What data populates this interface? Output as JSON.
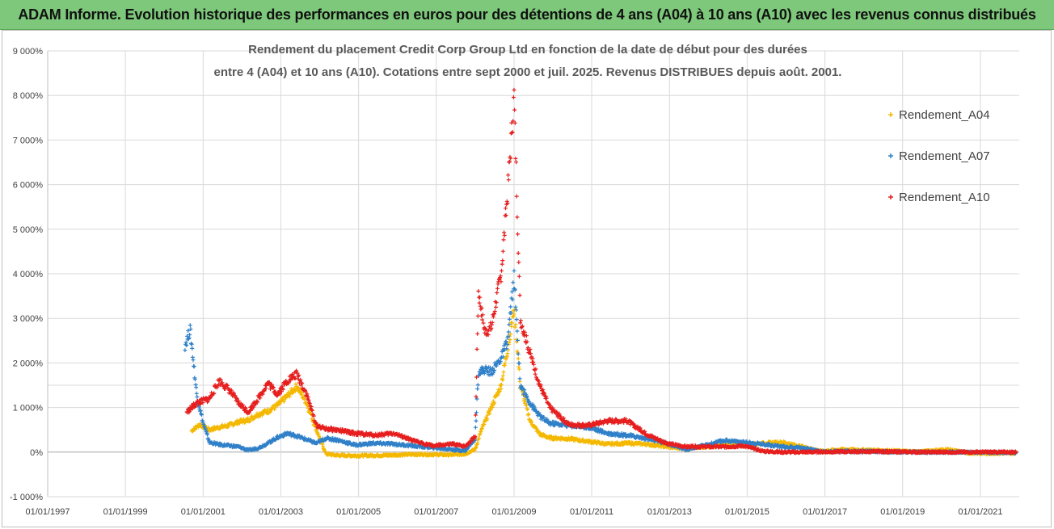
{
  "header": {
    "title": "ADAM Informe. Evolution historique des performances en euros pour des détentions de 4 ans (A04) à 10 ans (A10) avec les revenus connus distribués"
  },
  "chart_data": {
    "type": "scatter",
    "title_line1": "Rendement du placement Credit Corp Group Ltd en fonction de la date de début pour des durées",
    "title_line2": "entre 4 (A04) et 10 ans (A10). Cotations entre sept 2000 et juil. 2025. Revenus DISTRIBUES depuis août. 2001.",
    "xlabel": "",
    "ylabel": "",
    "xlim": [
      "1997-01-01",
      "2022-01-01"
    ],
    "ylim": [
      -1000,
      9000
    ],
    "y_ticks": [
      "9 000%",
      "8 000%",
      "7 000%",
      "6 000%",
      "5 000%",
      "4 000%",
      "3 000%",
      "2 000%",
      "1 000%",
      "0%",
      "-1 000%"
    ],
    "x_ticks": [
      "01/01/1997",
      "01/01/1999",
      "01/01/2001",
      "01/01/2003",
      "01/01/2005",
      "01/01/2007",
      "01/01/2009",
      "01/01/2011",
      "01/01/2013",
      "01/01/2015",
      "01/01/2017",
      "01/01/2019",
      "01/01/2021"
    ],
    "legend_position": "right",
    "grid": true,
    "marker": "+",
    "series": [
      {
        "name": "Rendement_A04",
        "color": "#f5b800",
        "points": [
          [
            "2000-09-15",
            480
          ],
          [
            "2000-12-01",
            620
          ],
          [
            "2001-03-01",
            500
          ],
          [
            "2001-06-01",
            560
          ],
          [
            "2001-09-01",
            600
          ],
          [
            "2001-12-01",
            680
          ],
          [
            "2002-03-01",
            720
          ],
          [
            "2002-06-01",
            850
          ],
          [
            "2002-09-01",
            920
          ],
          [
            "2002-12-01",
            1050
          ],
          [
            "2003-03-01",
            1250
          ],
          [
            "2003-06-01",
            1480
          ],
          [
            "2003-09-01",
            1100
          ],
          [
            "2003-12-01",
            500
          ],
          [
            "2004-03-01",
            -40
          ],
          [
            "2004-06-01",
            -70
          ],
          [
            "2004-12-01",
            -80
          ],
          [
            "2005-06-01",
            -75
          ],
          [
            "2005-12-01",
            -65
          ],
          [
            "2006-06-01",
            -50
          ],
          [
            "2006-12-01",
            -55
          ],
          [
            "2007-06-01",
            -60
          ],
          [
            "2007-10-01",
            -40
          ],
          [
            "2008-01-01",
            60
          ],
          [
            "2008-03-01",
            500
          ],
          [
            "2008-06-01",
            1000
          ],
          [
            "2008-09-01",
            1500
          ],
          [
            "2008-11-01",
            2300
          ],
          [
            "2009-01-01",
            3200
          ],
          [
            "2009-03-01",
            1500
          ],
          [
            "2009-06-01",
            700
          ],
          [
            "2009-09-01",
            400
          ],
          [
            "2009-12-01",
            320
          ],
          [
            "2010-06-01",
            300
          ],
          [
            "2010-12-01",
            240
          ],
          [
            "2011-06-01",
            180
          ],
          [
            "2011-12-01",
            200
          ],
          [
            "2012-06-01",
            180
          ],
          [
            "2012-12-01",
            120
          ],
          [
            "2013-06-01",
            80
          ],
          [
            "2013-12-01",
            120
          ],
          [
            "2014-06-01",
            150
          ],
          [
            "2014-12-01",
            160
          ],
          [
            "2015-06-01",
            200
          ],
          [
            "2015-12-01",
            220
          ],
          [
            "2016-06-01",
            120
          ],
          [
            "2016-12-01",
            20
          ],
          [
            "2017-06-01",
            60
          ],
          [
            "2018-06-01",
            40
          ],
          [
            "2019-06-01",
            10
          ],
          [
            "2020-03-01",
            60
          ],
          [
            "2020-09-01",
            -20
          ],
          [
            "2021-03-01",
            -30
          ],
          [
            "2021-12-01",
            -20
          ]
        ]
      },
      {
        "name": "Rendement_A07",
        "color": "#2f80c8",
        "points": [
          [
            "2000-07-15",
            2400
          ],
          [
            "2000-09-01",
            2750
          ],
          [
            "2000-11-01",
            1300
          ],
          [
            "2001-01-01",
            650
          ],
          [
            "2001-03-01",
            220
          ],
          [
            "2001-06-01",
            170
          ],
          [
            "2001-12-01",
            120
          ],
          [
            "2002-03-01",
            40
          ],
          [
            "2002-06-01",
            90
          ],
          [
            "2002-09-01",
            200
          ],
          [
            "2002-12-01",
            330
          ],
          [
            "2003-03-01",
            420
          ],
          [
            "2003-06-01",
            360
          ],
          [
            "2003-09-01",
            280
          ],
          [
            "2003-12-01",
            200
          ],
          [
            "2004-03-01",
            310
          ],
          [
            "2004-06-01",
            280
          ],
          [
            "2004-12-01",
            160
          ],
          [
            "2005-06-01",
            200
          ],
          [
            "2005-12-01",
            180
          ],
          [
            "2006-06-01",
            140
          ],
          [
            "2006-12-01",
            100
          ],
          [
            "2007-06-01",
            60
          ],
          [
            "2007-10-01",
            30
          ],
          [
            "2008-01-01",
            300
          ],
          [
            "2008-02-01",
            1800
          ],
          [
            "2008-04-01",
            1850
          ],
          [
            "2008-06-01",
            1800
          ],
          [
            "2008-09-01",
            2100
          ],
          [
            "2008-11-01",
            2500
          ],
          [
            "2009-01-01",
            3900
          ],
          [
            "2009-03-01",
            1500
          ],
          [
            "2009-06-01",
            1100
          ],
          [
            "2009-09-01",
            800
          ],
          [
            "2009-12-01",
            650
          ],
          [
            "2010-06-01",
            600
          ],
          [
            "2010-12-01",
            560
          ],
          [
            "2011-06-01",
            420
          ],
          [
            "2011-12-01",
            380
          ],
          [
            "2012-06-01",
            300
          ],
          [
            "2012-12-01",
            200
          ],
          [
            "2013-06-01",
            60
          ],
          [
            "2013-12-01",
            150
          ],
          [
            "2014-06-01",
            260
          ],
          [
            "2014-12-01",
            220
          ],
          [
            "2015-06-01",
            180
          ],
          [
            "2015-12-01",
            120
          ],
          [
            "2016-06-01",
            100
          ],
          [
            "2016-12-01",
            10
          ],
          [
            "2017-06-01",
            20
          ],
          [
            "2018-06-01",
            10
          ],
          [
            "2019-06-01",
            0
          ],
          [
            "2020-06-01",
            0
          ],
          [
            "2021-06-01",
            -10
          ],
          [
            "2021-12-01",
            -10
          ]
        ]
      },
      {
        "name": "Rendement_A10",
        "color": "#e61e1e",
        "points": [
          [
            "2000-08-01",
            900
          ],
          [
            "2000-11-01",
            1100
          ],
          [
            "2001-03-01",
            1200
          ],
          [
            "2001-06-01",
            1600
          ],
          [
            "2001-09-01",
            1400
          ],
          [
            "2001-12-01",
            1100
          ],
          [
            "2002-03-01",
            900
          ],
          [
            "2002-06-01",
            1200
          ],
          [
            "2002-09-01",
            1550
          ],
          [
            "2002-12-01",
            1300
          ],
          [
            "2003-03-01",
            1600
          ],
          [
            "2003-06-01",
            1750
          ],
          [
            "2003-09-01",
            1300
          ],
          [
            "2003-12-01",
            600
          ],
          [
            "2004-03-01",
            520
          ],
          [
            "2004-06-01",
            500
          ],
          [
            "2004-12-01",
            420
          ],
          [
            "2005-06-01",
            380
          ],
          [
            "2005-12-01",
            420
          ],
          [
            "2006-06-01",
            250
          ],
          [
            "2006-12-01",
            140
          ],
          [
            "2007-06-01",
            180
          ],
          [
            "2007-10-01",
            130
          ],
          [
            "2008-01-01",
            350
          ],
          [
            "2008-02-01",
            3600
          ],
          [
            "2008-04-01",
            2700
          ],
          [
            "2008-06-01",
            2800
          ],
          [
            "2008-09-01",
            4000
          ],
          [
            "2008-11-01",
            5800
          ],
          [
            "2009-01-01",
            8000
          ],
          [
            "2009-03-01",
            3000
          ],
          [
            "2009-06-01",
            2200
          ],
          [
            "2009-09-01",
            1500
          ],
          [
            "2009-12-01",
            1000
          ],
          [
            "2010-06-01",
            620
          ],
          [
            "2010-12-01",
            600
          ],
          [
            "2011-06-01",
            700
          ],
          [
            "2011-12-01",
            700
          ],
          [
            "2012-06-01",
            400
          ],
          [
            "2012-12-01",
            200
          ],
          [
            "2013-06-01",
            120
          ],
          [
            "2013-12-01",
            120
          ],
          [
            "2014-06-01",
            120
          ],
          [
            "2014-12-01",
            140
          ],
          [
            "2015-06-01",
            20
          ],
          [
            "2015-12-01",
            0
          ],
          [
            "2016-06-01",
            0
          ],
          [
            "2017-06-01",
            10
          ],
          [
            "2018-06-01",
            10
          ],
          [
            "2019-06-01",
            0
          ],
          [
            "2020-06-01",
            0
          ],
          [
            "2021-06-01",
            0
          ],
          [
            "2021-12-01",
            0
          ]
        ]
      }
    ]
  }
}
